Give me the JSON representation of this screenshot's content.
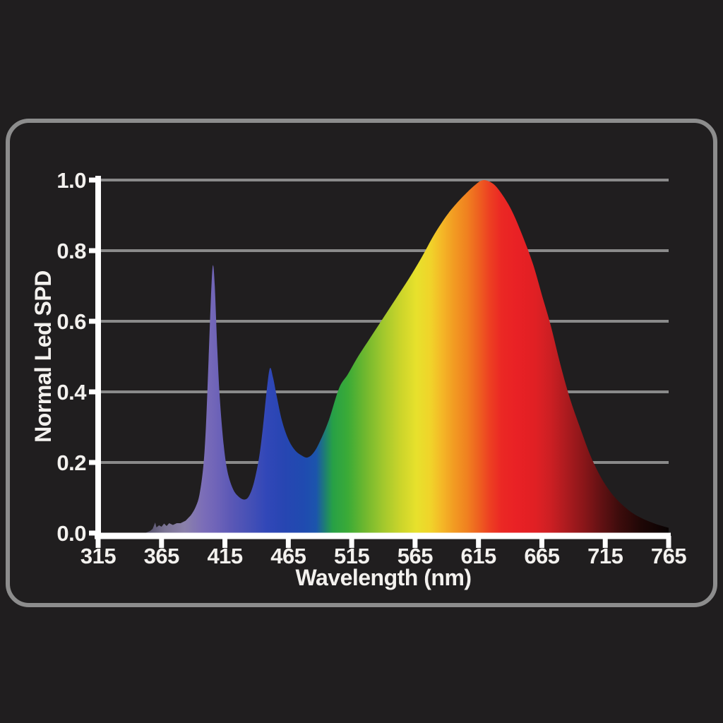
{
  "page": {
    "background": "#201e1f"
  },
  "panel": {
    "border_color": "#8d8d8d",
    "fill": "none"
  },
  "colors": {
    "grid": "#8a8a8a",
    "axis": "#ffffff",
    "text": "#f3f1ee"
  },
  "chart_data": {
    "type": "area",
    "title": "",
    "xlabel": "Wavelength (nm)",
    "ylabel": "Normal Led SPD",
    "xlim": [
      315,
      765
    ],
    "ylim": [
      0,
      1
    ],
    "grid": true,
    "legend": false,
    "x_ticks": [
      315,
      365,
      415,
      465,
      515,
      565,
      615,
      665,
      715,
      765
    ],
    "y_ticks": [
      {
        "value": 1.0,
        "label": "1.0"
      },
      {
        "value": 0.8,
        "label": "0.8"
      },
      {
        "value": 0.6,
        "label": "0.6"
      },
      {
        "value": 0.4,
        "label": "0.4"
      },
      {
        "value": 0.2,
        "label": "0.2"
      },
      {
        "value": 0.0,
        "label": "0.0"
      }
    ],
    "series": [
      {
        "name": "Normal Led SPD",
        "peaks_nm": [
          405,
          450,
          617
        ],
        "points": [
          [
            352,
            0
          ],
          [
            356,
            0.006
          ],
          [
            358,
            0.012
          ],
          [
            360,
            0.03
          ],
          [
            361,
            0.016
          ],
          [
            363,
            0.022
          ],
          [
            365,
            0.018
          ],
          [
            367,
            0.027
          ],
          [
            369,
            0.02
          ],
          [
            371,
            0.028
          ],
          [
            374,
            0.023
          ],
          [
            377,
            0.028
          ],
          [
            380,
            0.028
          ],
          [
            384,
            0.035
          ],
          [
            388,
            0.05
          ],
          [
            392,
            0.075
          ],
          [
            395,
            0.11
          ],
          [
            398,
            0.19
          ],
          [
            400,
            0.3
          ],
          [
            402,
            0.48
          ],
          [
            404,
            0.67
          ],
          [
            405.5,
            0.758
          ],
          [
            407,
            0.7
          ],
          [
            409,
            0.52
          ],
          [
            411,
            0.38
          ],
          [
            414,
            0.25
          ],
          [
            417,
            0.175
          ],
          [
            421,
            0.128
          ],
          [
            425,
            0.106
          ],
          [
            430,
            0.095
          ],
          [
            434,
            0.105
          ],
          [
            438,
            0.145
          ],
          [
            442,
            0.215
          ],
          [
            445,
            0.3
          ],
          [
            448,
            0.405
          ],
          [
            450.5,
            0.467
          ],
          [
            453,
            0.44
          ],
          [
            456,
            0.385
          ],
          [
            460,
            0.318
          ],
          [
            465,
            0.266
          ],
          [
            470,
            0.236
          ],
          [
            475,
            0.221
          ],
          [
            480,
            0.214
          ],
          [
            485,
            0.228
          ],
          [
            490,
            0.26
          ],
          [
            497,
            0.32
          ],
          [
            505,
            0.41
          ],
          [
            512,
            0.45
          ],
          [
            520,
            0.5
          ],
          [
            530,
            0.555
          ],
          [
            540,
            0.61
          ],
          [
            550,
            0.665
          ],
          [
            560,
            0.72
          ],
          [
            570,
            0.78
          ],
          [
            580,
            0.845
          ],
          [
            590,
            0.9
          ],
          [
            598,
            0.935
          ],
          [
            606,
            0.965
          ],
          [
            612,
            0.985
          ],
          [
            617,
            0.998
          ],
          [
            622,
            0.998
          ],
          [
            628,
            0.985
          ],
          [
            635,
            0.952
          ],
          [
            642,
            0.908
          ],
          [
            650,
            0.84
          ],
          [
            658,
            0.762
          ],
          [
            665,
            0.675
          ],
          [
            672,
            0.588
          ],
          [
            680,
            0.472
          ],
          [
            687,
            0.383
          ],
          [
            695,
            0.3
          ],
          [
            703,
            0.222
          ],
          [
            711,
            0.162
          ],
          [
            719,
            0.117
          ],
          [
            727,
            0.085
          ],
          [
            736,
            0.058
          ],
          [
            745,
            0.04
          ],
          [
            754,
            0.027
          ],
          [
            760,
            0.02
          ],
          [
            765,
            0.015
          ]
        ]
      }
    ],
    "spectrum_gradient": [
      {
        "nm": 350,
        "color": "#4a4760"
      },
      {
        "nm": 368,
        "color": "#7b7494"
      },
      {
        "nm": 383,
        "color": "#8b81ab"
      },
      {
        "nm": 398,
        "color": "#7b6db8"
      },
      {
        "nm": 408,
        "color": "#6f64b8"
      },
      {
        "nm": 420,
        "color": "#5b58b6"
      },
      {
        "nm": 435,
        "color": "#4550b6"
      },
      {
        "nm": 448,
        "color": "#3147b8"
      },
      {
        "nm": 462,
        "color": "#2746b2"
      },
      {
        "nm": 478,
        "color": "#1f4bb0"
      },
      {
        "nm": 487,
        "color": "#1c55ac"
      },
      {
        "nm": 494,
        "color": "#1e7f72"
      },
      {
        "nm": 500,
        "color": "#27a046"
      },
      {
        "nm": 512,
        "color": "#3bab37"
      },
      {
        "nm": 525,
        "color": "#6db72f"
      },
      {
        "nm": 540,
        "color": "#a2c82d"
      },
      {
        "nm": 554,
        "color": "#ccd52b"
      },
      {
        "nm": 566,
        "color": "#e7e12c"
      },
      {
        "nm": 577,
        "color": "#f0d42a"
      },
      {
        "nm": 586,
        "color": "#f4b827"
      },
      {
        "nm": 596,
        "color": "#f29a22"
      },
      {
        "nm": 606,
        "color": "#f08120"
      },
      {
        "nm": 615,
        "color": "#ee6120"
      },
      {
        "nm": 624,
        "color": "#ed3f22"
      },
      {
        "nm": 633,
        "color": "#eb2824"
      },
      {
        "nm": 645,
        "color": "#e92125"
      },
      {
        "nm": 660,
        "color": "#e02024"
      },
      {
        "nm": 672,
        "color": "#cc1f23"
      },
      {
        "nm": 684,
        "color": "#ad1b1f"
      },
      {
        "nm": 698,
        "color": "#8a1619"
      },
      {
        "nm": 712,
        "color": "#611113"
      },
      {
        "nm": 726,
        "color": "#3d0c0c"
      },
      {
        "nm": 743,
        "color": "#1f0706"
      },
      {
        "nm": 765,
        "color": "#090303"
      }
    ]
  }
}
